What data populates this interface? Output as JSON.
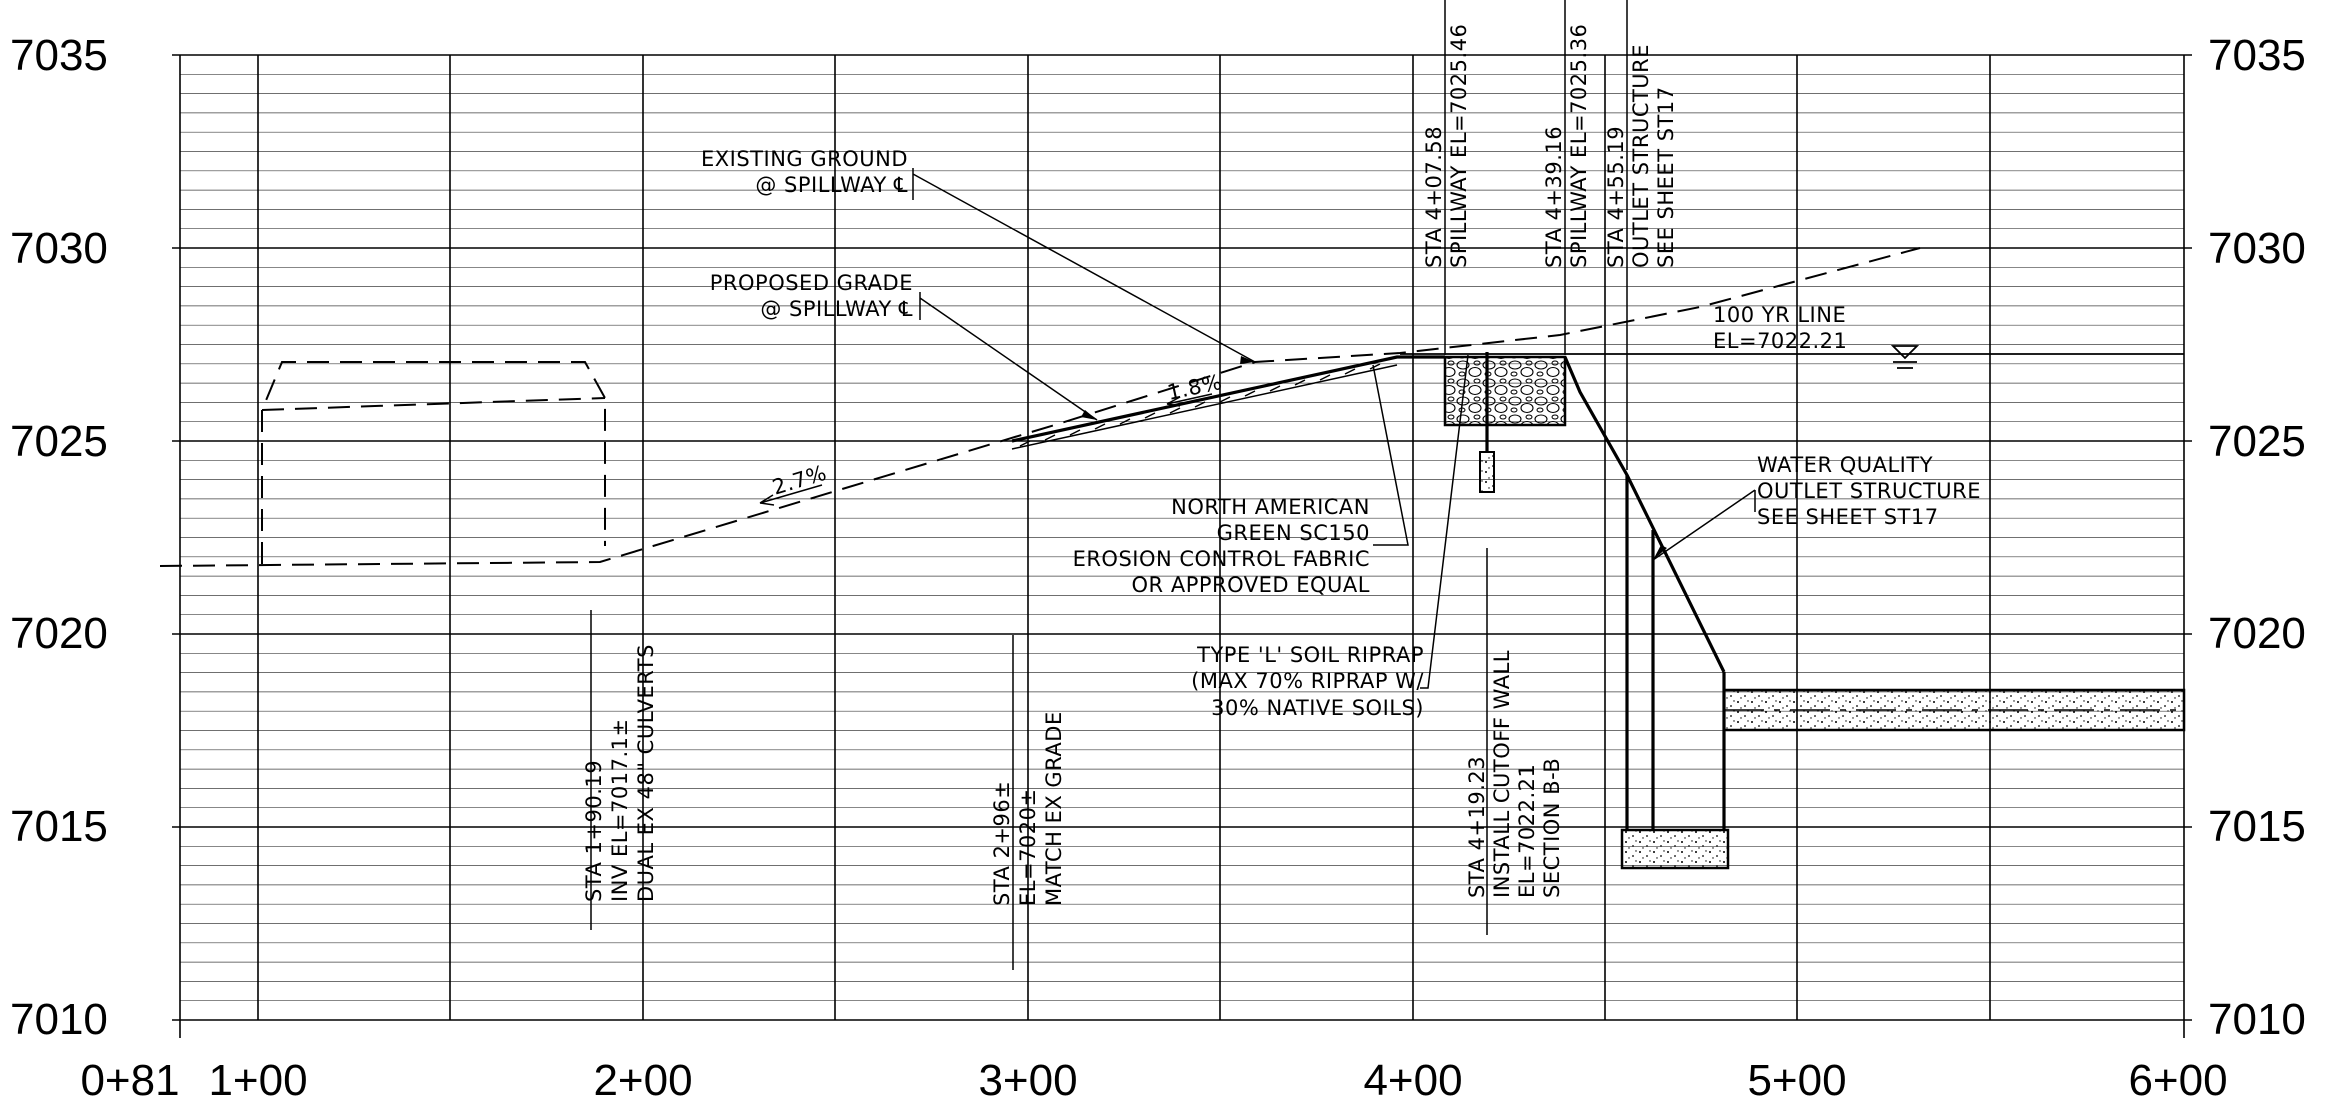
{
  "axes": {
    "elevations": [
      "7035",
      "7030",
      "7025",
      "7020",
      "7015",
      "7010"
    ],
    "stations": [
      "0+81",
      "1+00",
      "2+00",
      "3+00",
      "4+00",
      "5+00",
      "6+00"
    ]
  },
  "labels": {
    "existing_ground": [
      "EXISTING GROUND",
      "@ SPILLWAY ℄"
    ],
    "proposed_grade": [
      "PROPOSED GRADE",
      "@ SPILLWAY ℄"
    ],
    "slope_1": "1.8%",
    "slope_2": "2.7%",
    "sta_407": [
      "STA 4+07.58",
      "SPILLWAY EL=7025.46"
    ],
    "sta_439": [
      "STA 4+39.16",
      "SPILLWAY EL=7025.36"
    ],
    "sta_455": [
      "STA 4+55.19",
      "OUTLET STRUCTURE",
      "SEE SHEET ST17"
    ],
    "yr_line": [
      "100 YR LINE",
      "EL=7022.21"
    ],
    "fabric": [
      "NORTH AMERICAN",
      "GREEN SC150",
      "EROSION CONTROL FABRIC",
      "OR APPROVED EQUAL"
    ],
    "water_quality": [
      "WATER QUALITY",
      "OUTLET STRUCTURE",
      "SEE SHEET ST17"
    ],
    "riprap": [
      "TYPE 'L' SOIL RIPRAP",
      "(MAX 70% RIPRAP W/",
      "30% NATIVE SOILS)"
    ],
    "sta_190": [
      "STA 1+90.19",
      "INV EL=7017.1±",
      "DUAL EX 48\" CULVERTS"
    ],
    "sta_296": [
      "STA 2+96±",
      "EL=7020±",
      "MATCH EX GRADE"
    ],
    "sta_419": [
      "STA 4+19.23",
      "INSTALL CUTOFF WALL",
      "EL=7022.21",
      "SECTION B-B"
    ]
  }
}
